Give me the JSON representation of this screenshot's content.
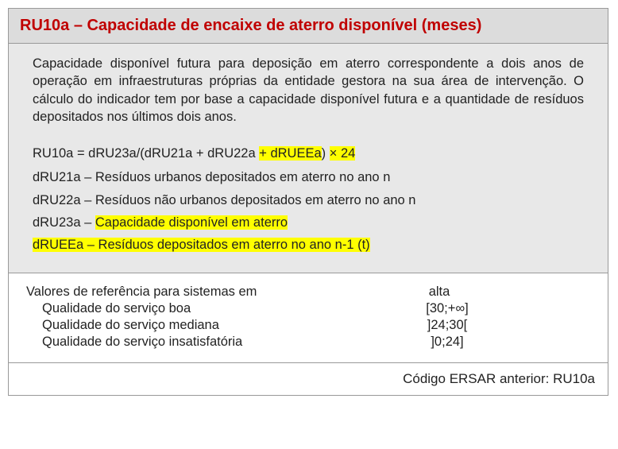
{
  "header": {
    "title": "RU10a – Capacidade de encaixe de aterro disponível (meses)"
  },
  "body": {
    "description": "Capacidade disponível futura para deposição em aterro correspondente a dois anos de operação em infraestruturas próprias da entidade gestora na sua área de intervenção. O cálculo do indicador tem por base a capacidade disponível futura e a quantidade de resíduos depositados nos últimos dois anos.",
    "formula_pre": "RU10a = dRU23a/(dRU21a + dRU22a ",
    "formula_hl": "+ dRUEEa",
    "formula_post1": ") ",
    "formula_post2": "× 24",
    "def1": "dRU21a – Resíduos urbanos depositados em aterro no ano n",
    "def2": "dRU22a – Resíduos não urbanos depositados em aterro no ano n",
    "def3_pre": "dRU23a – ",
    "def3_hl": "Capacidade disponível em aterro",
    "def4_hl": "dRUEEa – Resíduos depositados em aterro no ano n-1 (t)"
  },
  "ref": {
    "heading": "Valores de referência para sistemas em",
    "col": "alta",
    "rows": [
      {
        "label": "Qualidade do serviço boa",
        "value": "[30;+∞]"
      },
      {
        "label": "Qualidade do serviço mediana",
        "value": "]24;30["
      },
      {
        "label": "Qualidade do serviço insatisfatória",
        "value": "]0;24]"
      }
    ]
  },
  "footer": {
    "text": "Código ERSAR anterior: RU10a"
  }
}
